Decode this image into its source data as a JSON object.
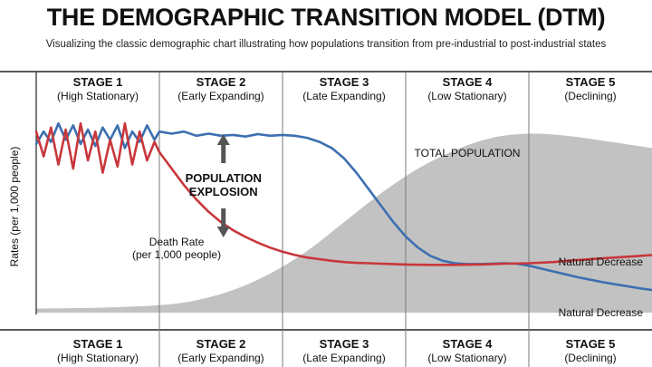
{
  "title": "THE DEMOGRAPHIC TRANSITION MODEL (DTM)",
  "subtitle": "Visualizing the classic demographic chart illustrating how populations transition from pre-industrial to post-industrial states",
  "colors": {
    "birth_rate": "#3d6fb0",
    "death_rate": "#c8373b",
    "total_population": "#c2c2c2",
    "stage_divider": "#7a7a7a",
    "axis": "#222222"
  },
  "chart_data": {
    "type": "line",
    "ylabel": "Rates (per 1,000 people)",
    "xlabel": "",
    "stages": [
      {
        "name": "STAGE 1",
        "label": "(High Stationary)"
      },
      {
        "name": "STAGE 2",
        "label": "(Early Expanding)"
      },
      {
        "name": "STAGE 3",
        "label": "(Late Expanding)"
      },
      {
        "name": "STAGE 4",
        "label": "(Low Stationary)"
      },
      {
        "name": "STAGE 5",
        "label": "(Declining)"
      }
    ],
    "x_range": [
      0,
      5
    ],
    "y_range": [
      0,
      50
    ],
    "grid": false,
    "series": [
      {
        "key": "birth",
        "color": "#3d6fb0",
        "points": [
          [
            0,
            41
          ],
          [
            0.06,
            44
          ],
          [
            0.12,
            41.5
          ],
          [
            0.18,
            46
          ],
          [
            0.24,
            42
          ],
          [
            0.3,
            45.5
          ],
          [
            0.36,
            41
          ],
          [
            0.42,
            44.5
          ],
          [
            0.48,
            40.5
          ],
          [
            0.54,
            45
          ],
          [
            0.6,
            42
          ],
          [
            0.66,
            45.5
          ],
          [
            0.72,
            40
          ],
          [
            0.78,
            44
          ],
          [
            0.84,
            41.5
          ],
          [
            0.9,
            45.5
          ],
          [
            0.96,
            42
          ],
          [
            1.0,
            44
          ],
          [
            1.1,
            43.5
          ],
          [
            1.2,
            44
          ],
          [
            1.3,
            43
          ],
          [
            1.4,
            43.5
          ],
          [
            1.5,
            43
          ],
          [
            1.6,
            43.2
          ],
          [
            1.7,
            42.8
          ],
          [
            1.8,
            43.4
          ],
          [
            1.9,
            43
          ],
          [
            2.0,
            43.2
          ],
          [
            2.1,
            43
          ],
          [
            2.2,
            42.5
          ],
          [
            2.3,
            41.5
          ],
          [
            2.4,
            40
          ],
          [
            2.5,
            37.5
          ],
          [
            2.6,
            34
          ],
          [
            2.7,
            30
          ],
          [
            2.8,
            26
          ],
          [
            2.9,
            22
          ],
          [
            3.0,
            18.5
          ],
          [
            3.1,
            15.8
          ],
          [
            3.2,
            13.8
          ],
          [
            3.3,
            12.6
          ],
          [
            3.4,
            12
          ],
          [
            3.5,
            11.8
          ],
          [
            3.6,
            11.8
          ],
          [
            3.7,
            11.9
          ],
          [
            3.8,
            12
          ],
          [
            3.9,
            11.9
          ],
          [
            4.0,
            11.4
          ],
          [
            4.1,
            10.7
          ],
          [
            4.2,
            10
          ],
          [
            4.3,
            9.3
          ],
          [
            4.4,
            8.6
          ],
          [
            4.5,
            8
          ],
          [
            4.6,
            7.4
          ],
          [
            4.7,
            6.9
          ],
          [
            4.8,
            6.4
          ],
          [
            4.9,
            5.9
          ],
          [
            5.0,
            5.5
          ]
        ]
      },
      {
        "key": "death",
        "color": "#c8373b",
        "points": [
          [
            0,
            44
          ],
          [
            0.06,
            38
          ],
          [
            0.12,
            45
          ],
          [
            0.18,
            36
          ],
          [
            0.24,
            44.5
          ],
          [
            0.3,
            35
          ],
          [
            0.36,
            46
          ],
          [
            0.42,
            37
          ],
          [
            0.48,
            44
          ],
          [
            0.54,
            34
          ],
          [
            0.6,
            42
          ],
          [
            0.66,
            35.5
          ],
          [
            0.72,
            46
          ],
          [
            0.78,
            36
          ],
          [
            0.84,
            44
          ],
          [
            0.9,
            37
          ],
          [
            0.96,
            41.5
          ],
          [
            1.0,
            39
          ],
          [
            1.1,
            35
          ],
          [
            1.2,
            31
          ],
          [
            1.3,
            27.5
          ],
          [
            1.4,
            24.5
          ],
          [
            1.5,
            22
          ],
          [
            1.6,
            20
          ],
          [
            1.7,
            18.4
          ],
          [
            1.8,
            17
          ],
          [
            1.9,
            15.8
          ],
          [
            2.0,
            14.8
          ],
          [
            2.1,
            14
          ],
          [
            2.2,
            13.4
          ],
          [
            2.3,
            13
          ],
          [
            2.4,
            12.6
          ],
          [
            2.5,
            12.3
          ],
          [
            2.6,
            12.1
          ],
          [
            2.7,
            12
          ],
          [
            2.8,
            11.9
          ],
          [
            2.9,
            11.8
          ],
          [
            3.0,
            11.7
          ],
          [
            3.2,
            11.6
          ],
          [
            3.4,
            11.6
          ],
          [
            3.6,
            11.7
          ],
          [
            3.8,
            11.9
          ],
          [
            4.0,
            12
          ],
          [
            4.2,
            12.3
          ],
          [
            4.4,
            12.8
          ],
          [
            4.6,
            13.2
          ],
          [
            4.8,
            13.6
          ],
          [
            5.0,
            14
          ]
        ]
      }
    ],
    "total_population": {
      "label": "TOTAL POPULATION",
      "points": [
        [
          0,
          1
        ],
        [
          0.5,
          1.2
        ],
        [
          1.0,
          1.8
        ],
        [
          1.3,
          3
        ],
        [
          1.6,
          5.5
        ],
        [
          1.9,
          9.5
        ],
        [
          2.2,
          15
        ],
        [
          2.5,
          22
        ],
        [
          2.8,
          29
        ],
        [
          3.1,
          35
        ],
        [
          3.4,
          39.5
        ],
        [
          3.7,
          42.5
        ],
        [
          4.0,
          43.5
        ],
        [
          4.3,
          43
        ],
        [
          4.6,
          41.8
        ],
        [
          5.0,
          40
        ]
      ]
    },
    "annotations": {
      "population_explosion": [
        "POPULATION",
        "EXPLOSION"
      ],
      "death_rate": [
        "Death Rate",
        "(per 1,000 people)"
      ],
      "natural_decrease_upper": "Natural Decrease",
      "natural_decrease_lower": "Natural Decrease"
    }
  }
}
